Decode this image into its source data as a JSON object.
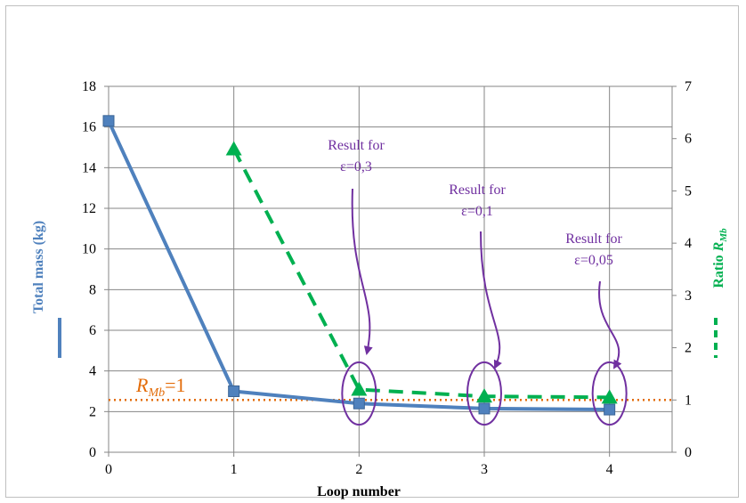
{
  "chart_data": {
    "type": "line",
    "xlabel": "Loop number",
    "x_ticks": [
      "0",
      "1",
      "2",
      "3",
      "4"
    ],
    "xlim": [
      0,
      4.5
    ],
    "ylabel": "Total mass (kg)",
    "ylim": [
      0,
      18
    ],
    "y_ticks": [
      "0",
      "2",
      "4",
      "6",
      "8",
      "10",
      "12",
      "14",
      "16",
      "18"
    ],
    "y2label_prefix": "Ratio ",
    "y2label_var": "R",
    "y2label_sub": "Mb",
    "y2lim": [
      0,
      7
    ],
    "y2_ticks": [
      "0",
      "1",
      "2",
      "3",
      "4",
      "5",
      "6",
      "7"
    ],
    "grid": true,
    "series": [
      {
        "name": "Total mass (kg)",
        "axis": "left",
        "color": "#4f81bd",
        "style": "solid",
        "marker": "square",
        "x": [
          0,
          1,
          2,
          3,
          4
        ],
        "values": [
          16.3,
          3.0,
          2.4,
          2.15,
          2.1
        ]
      },
      {
        "name": "Ratio R_Mb",
        "axis": "right",
        "color": "#00b050",
        "style": "dashed",
        "marker": "triangle",
        "x": [
          1,
          2,
          3,
          4
        ],
        "values": [
          5.8,
          1.2,
          1.07,
          1.05
        ]
      }
    ],
    "reference_line": {
      "axis": "right",
      "value": 1,
      "color": "#e36c09",
      "style": "dotted",
      "label_var": "R",
      "label_sub": "Mb",
      "label_rest": "=1"
    },
    "annotations": [
      {
        "line1": "Result for",
        "line2": "ε=0,3",
        "target_x": 2
      },
      {
        "line1": "Result for",
        "line2": "ε=0,1",
        "target_x": 3
      },
      {
        "line1": "Result for",
        "line2": "ε=0,05",
        "target_x": 4
      }
    ]
  }
}
